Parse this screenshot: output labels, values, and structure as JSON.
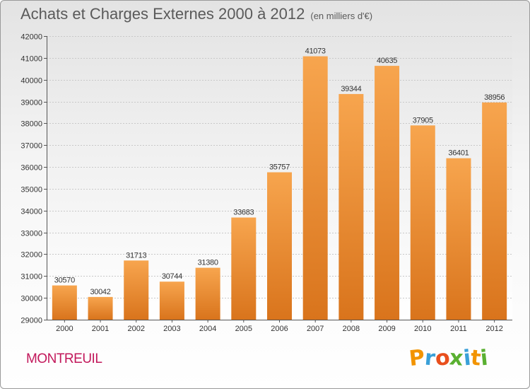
{
  "title": "Achats et Charges Externes 2000 à 2012",
  "subtitle": "(en milliers d'€)",
  "city": "MONTREUIL",
  "logo": {
    "letters": [
      "P",
      "r",
      "o",
      "x",
      "i",
      "t",
      "i"
    ],
    "colors": [
      "#f29400",
      "#3aa0d8",
      "#e94f1d",
      "#5ab031",
      "#3aa0d8",
      "#f29400",
      "#5ab031"
    ]
  },
  "colors": {
    "bar_top": "#f7a54e",
    "bar_bottom": "#d9741c",
    "text": "#333333"
  },
  "chart_data": {
    "type": "bar",
    "title": "Achats et Charges Externes 2000 à 2012",
    "subtitle": "(en milliers d'€)",
    "xlabel": "",
    "ylabel": "",
    "categories": [
      "2000",
      "2001",
      "2002",
      "2003",
      "2004",
      "2005",
      "2006",
      "2007",
      "2008",
      "2009",
      "2010",
      "2011",
      "2012"
    ],
    "values": [
      30570,
      30042,
      31713,
      30744,
      31380,
      33683,
      35757,
      41073,
      39344,
      40635,
      37905,
      36401,
      38956
    ],
    "value_labels": [
      "30570",
      "30042",
      "31713",
      "30744",
      "31380",
      "33683",
      "35757",
      "41073",
      "39344",
      "40635",
      "37905",
      "36401",
      "38956"
    ],
    "ylim": [
      29000,
      42000
    ],
    "yticks": [
      "29000",
      "30000",
      "31000",
      "32000",
      "33000",
      "34000",
      "35000",
      "36000",
      "37000",
      "38000",
      "39000",
      "40000",
      "41000",
      "42000"
    ],
    "grid": true,
    "legend": "none"
  }
}
